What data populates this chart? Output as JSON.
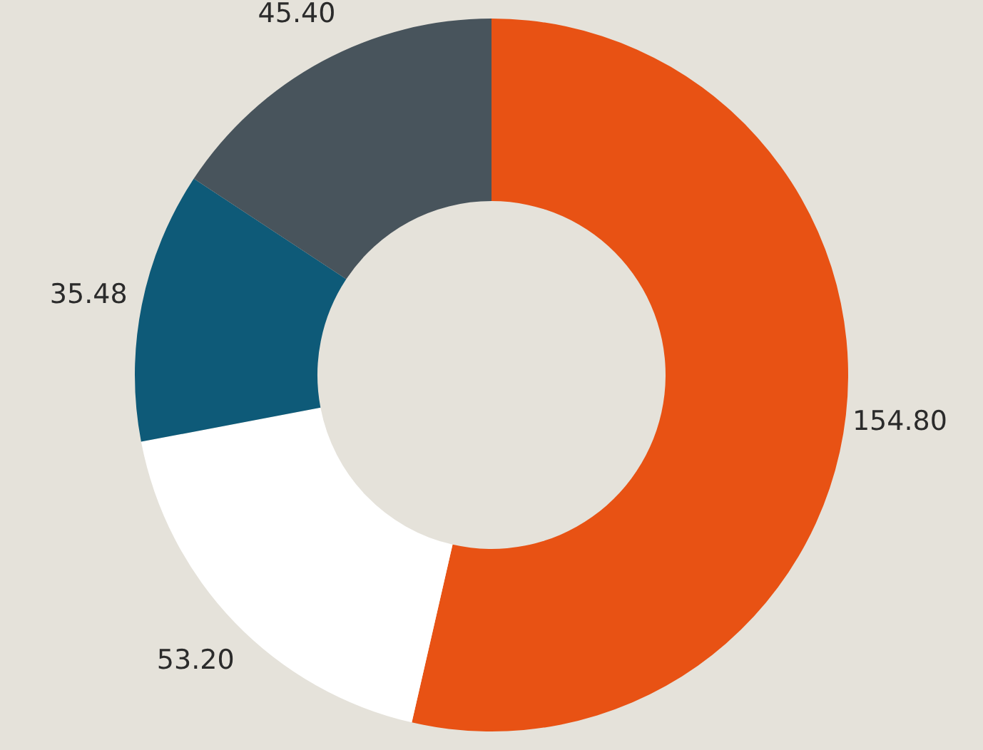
{
  "chart_data": {
    "type": "donut",
    "categories": [
      null,
      null,
      null,
      null
    ],
    "values": [
      154.8,
      53.2,
      35.48,
      45.4
    ],
    "colors": [
      "#e85214",
      "#ffffff",
      "#0e5a78",
      "#48545c"
    ],
    "value_labels": [
      "154.80",
      "53.20",
      "35.48",
      "45.40"
    ]
  }
}
